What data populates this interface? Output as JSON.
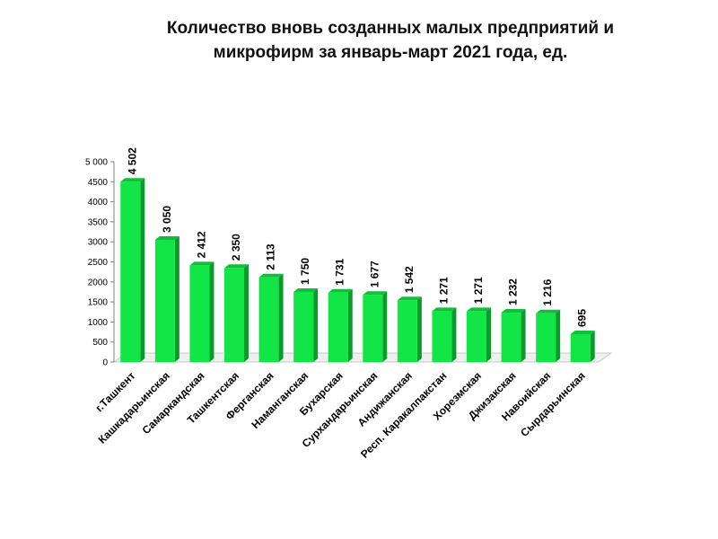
{
  "title": "Количество вновь созданных малых предприятий и микрофирм за январь-март 2021 года, ед.",
  "colors": {
    "bar_front": "#12e646",
    "bar_top": "#0fbf38",
    "bar_side": "#0b9a2c",
    "floor": "#c8c8c8",
    "axis": "#808080"
  },
  "chart_data": {
    "type": "bar",
    "title": "Количество вновь созданных малых предприятий и микрофирм за январь-март 2021 года, ед.",
    "xlabel": "",
    "ylabel": "",
    "ylim": [
      0,
      5000
    ],
    "yticks": [
      0,
      500,
      1000,
      1500,
      2000,
      2500,
      3000,
      3500,
      4000,
      4500,
      5000
    ],
    "ytick_labels": [
      "0",
      "500",
      "1000",
      "1500",
      "2000",
      "2500",
      "3000",
      "3500",
      "4000",
      "4500",
      "5 000"
    ],
    "grid": false,
    "legend": "none",
    "categories": [
      "г.Ташкент",
      "Кашкадарьинская",
      "Самаркандская",
      "Ташкентская",
      "Ферганская",
      "Наманганская",
      "Бухарская",
      "Сурхандарьинская",
      "Андижанская",
      "Респ. Каракалпакстан",
      "Хорезмская",
      "Джизакская",
      "Навоийская",
      "Сырдарьинская"
    ],
    "values": [
      4502,
      3050,
      2412,
      2350,
      2113,
      1750,
      1731,
      1677,
      1542,
      1271,
      1271,
      1232,
      1216,
      695
    ],
    "value_labels": [
      "4 502",
      "3 050",
      "2 412",
      "2 350",
      "2 113",
      "1 750",
      "1 731",
      "1 677",
      "1 542",
      "1 271",
      "1 271",
      "1 232",
      "1 216",
      "695"
    ]
  }
}
